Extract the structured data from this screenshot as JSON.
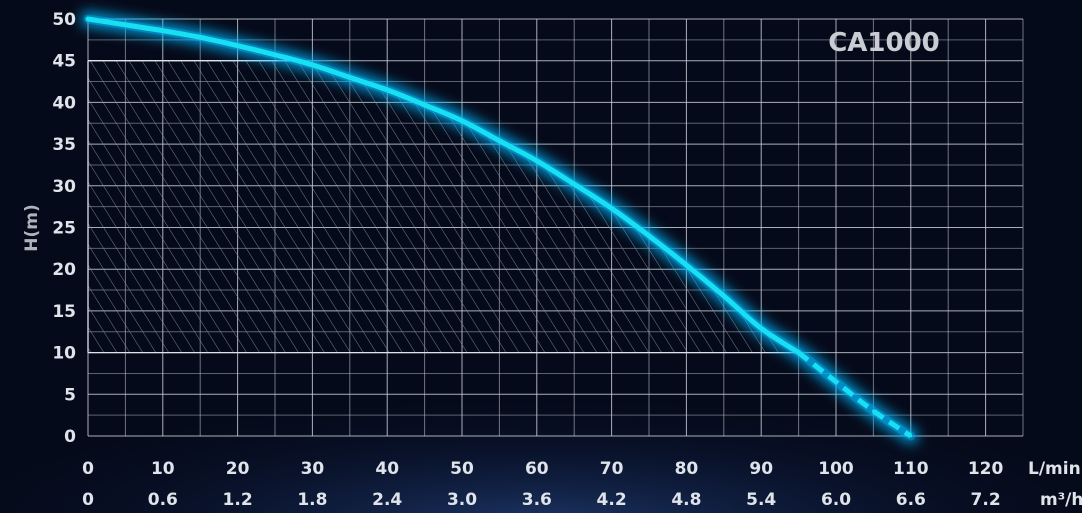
{
  "chart_data": {
    "type": "line",
    "title": "CA1000",
    "ylabel": "H(m)",
    "xlabel": "L/min",
    "x2label": "m³/h",
    "x_ticks": [
      "0",
      "10",
      "20",
      "30",
      "40",
      "50",
      "60",
      "70",
      "80",
      "90",
      "100",
      "110",
      "120"
    ],
    "x2_ticks": [
      "0",
      "0.6",
      "1.2",
      "1.8",
      "2.4",
      "3.0",
      "3.6",
      "4.2",
      "4.8",
      "5.4",
      "6.0",
      "6.6",
      "7.2"
    ],
    "y_ticks": [
      "0",
      "5",
      "10",
      "15",
      "20",
      "25",
      "30",
      "35",
      "40",
      "45",
      "50"
    ],
    "xlim": [
      0,
      125
    ],
    "ylim": [
      0,
      50
    ],
    "grid": true,
    "series": [
      {
        "x": [
          0,
          5,
          10,
          15,
          20,
          25,
          30,
          35,
          40,
          45,
          50,
          55,
          60,
          65,
          70,
          75,
          80,
          85,
          90,
          95,
          100,
          105,
          110
        ],
        "values": [
          50,
          49.3,
          48.6,
          47.8,
          46.8,
          45.7,
          44.5,
          43,
          41.5,
          39.7,
          37.8,
          35.4,
          33,
          30.2,
          27.3,
          24,
          20.5,
          16.8,
          12.9,
          10,
          6.5,
          3,
          0
        ]
      }
    ],
    "series_dashed_from_y": 10,
    "operating_range": {
      "x": [
        0,
        106.5
      ],
      "y": [
        10,
        45
      ]
    },
    "colors": {
      "curve": "#19e0f0",
      "glow": "#00b8ff",
      "grid": "#c8ccd4",
      "background": "#050a1a"
    }
  }
}
